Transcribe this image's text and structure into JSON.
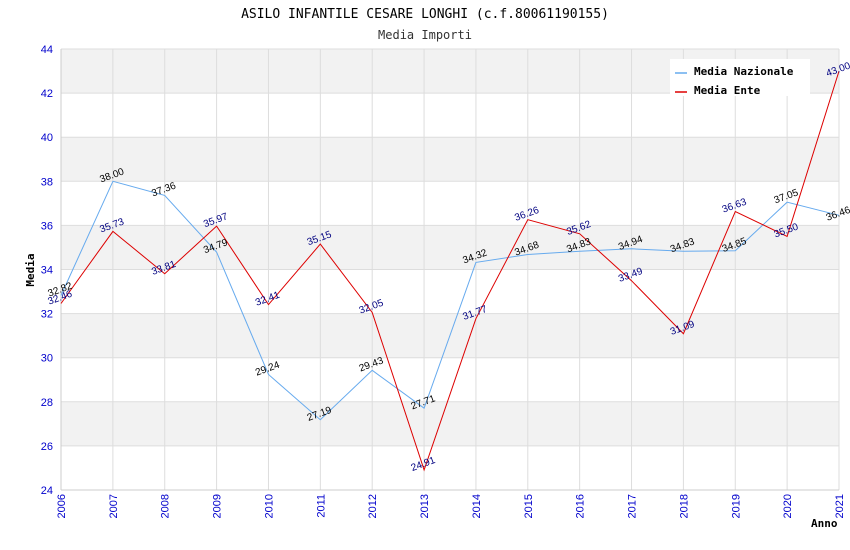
{
  "chart_data": {
    "type": "line",
    "title": "ASILO INFANTILE CESARE LONGHI (c.f.80061190155)",
    "subtitle": "Media Importi",
    "xlabel": "Anno",
    "ylabel": "Media",
    "x": [
      "2006",
      "2007",
      "2008",
      "2009",
      "2010",
      "2011",
      "2012",
      "2013",
      "2014",
      "2015",
      "2016",
      "2017",
      "2018",
      "2019",
      "2020",
      "2021"
    ],
    "ylim": [
      24,
      44
    ],
    "yticks": [
      "24",
      "26",
      "28",
      "30",
      "32",
      "34",
      "36",
      "38",
      "40",
      "42",
      "44"
    ],
    "legend_position": "top-right",
    "series": [
      {
        "name": "Media Nazionale",
        "color": "#66aaee",
        "label_color": "#000000",
        "values": [
          32.82,
          38.0,
          37.36,
          34.79,
          29.24,
          27.19,
          29.43,
          27.71,
          34.32,
          34.68,
          34.83,
          34.94,
          34.83,
          34.85,
          37.05,
          36.46
        ],
        "labels": [
          "32.82",
          "38.00",
          "37.36",
          "34.79",
          "29.24",
          "27.19",
          "29.43",
          "27.71",
          "34.32",
          "34.68",
          "34.83",
          "34.94",
          "34.83",
          "34.85",
          "37.05",
          "36.46"
        ]
      },
      {
        "name": "Media Ente",
        "color": "#dd0000",
        "label_color": "#000080",
        "values": [
          32.46,
          35.73,
          33.81,
          35.97,
          32.41,
          35.15,
          32.05,
          24.91,
          31.77,
          36.26,
          35.62,
          33.49,
          31.09,
          36.63,
          35.5,
          43.0
        ],
        "labels": [
          "32.46",
          "35.73",
          "33.81",
          "35.97",
          "32.41",
          "35.15",
          "32.05",
          "24.91",
          "31.77",
          "36.26",
          "35.62",
          "33.49",
          "31.09",
          "36.63",
          "35.50",
          "43.00"
        ]
      }
    ]
  }
}
